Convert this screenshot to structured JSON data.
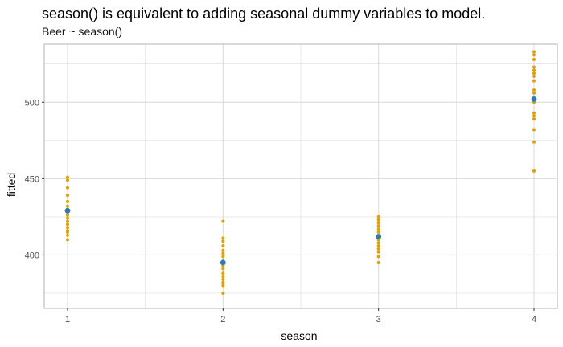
{
  "chart_data": {
    "type": "scatter",
    "title": "season() is equivalent to adding seasonal dummy variables to model.",
    "subtitle": "Beer ~ season()",
    "xlabel": "season",
    "ylabel": "fitted",
    "categories": [
      "1",
      "2",
      "3",
      "4"
    ],
    "xlim": [
      0.85,
      4.15
    ],
    "ylim": [
      365,
      538
    ],
    "y_ticks": [
      400,
      450,
      500
    ],
    "grid": true,
    "colors": {
      "observed": "#E69F00",
      "fitted": "#2C7BB6",
      "grid": "#dcdcdc",
      "panel_border": "#b3b3b3"
    },
    "series": [
      {
        "type": "observed",
        "points": [
          {
            "x": 1,
            "y": [
              451,
              449,
              444,
              439,
              435,
              432,
              430,
              428,
              426,
              424,
              422,
              420,
              418,
              416,
              415,
              413,
              410
            ]
          },
          {
            "x": 2,
            "y": [
              422,
              411,
              409,
              406,
              403,
              401,
              399,
              396,
              393,
              391,
              388,
              386,
              384,
              382,
              380,
              375
            ]
          },
          {
            "x": 3,
            "y": [
              425,
              423,
              421,
              419,
              417,
              415,
              413,
              411,
              410,
              408,
              406,
              404,
              402,
              399,
              395
            ]
          },
          {
            "x": 4,
            "y": [
              533,
              531,
              528,
              523,
              521,
              519,
              517,
              514,
              508,
              506,
              502,
              500,
              493,
              491,
              489,
              482,
              474,
              455
            ]
          }
        ]
      },
      {
        "type": "fitted",
        "points": [
          {
            "x": 1,
            "y": 429
          },
          {
            "x": 2,
            "y": 395
          },
          {
            "x": 3,
            "y": 412
          },
          {
            "x": 4,
            "y": 502
          }
        ]
      }
    ]
  }
}
